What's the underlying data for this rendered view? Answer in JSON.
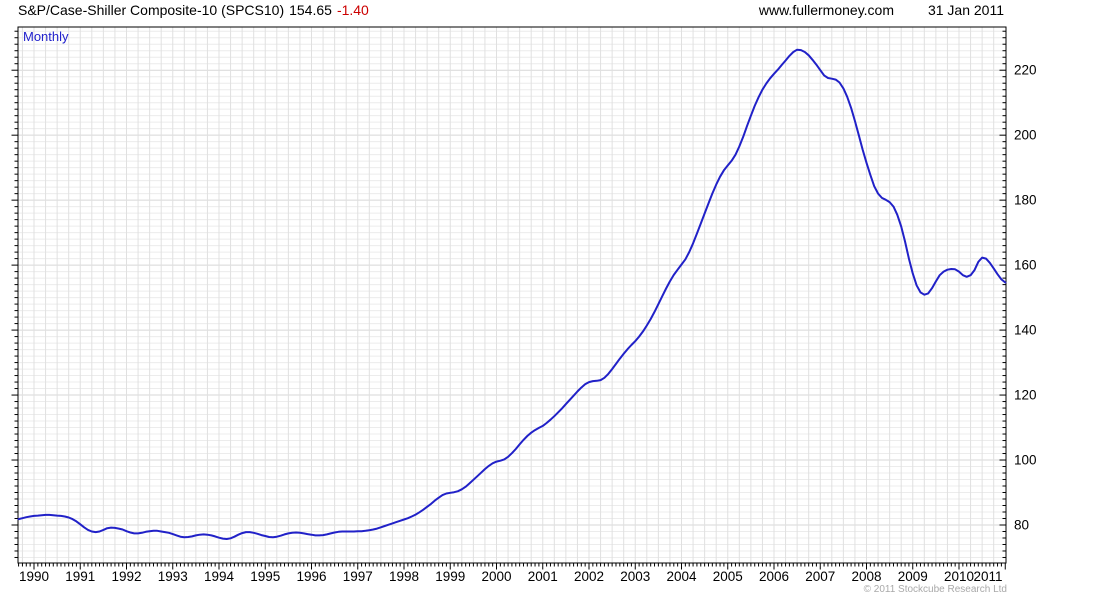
{
  "header": {
    "instrument": "S&P/Case-Shiller Composite-10 (SPCS10)",
    "last_value": "154.65",
    "change": "-1.40",
    "change_color": "#cc0000",
    "site": "www.fullermoney.com",
    "date": "31 Jan 2011"
  },
  "chart": {
    "frequency_label": "Monthly",
    "frequency_color": "#2222cc",
    "copyright": "© 2011 Stockcube Research Ltd"
  },
  "chart_data": {
    "type": "line",
    "title": "S&P/Case-Shiller Composite-10 (SPCS10)",
    "xlabel": "",
    "ylabel": "",
    "frequency": "monthly",
    "grid": true,
    "line_color": "#2121c8",
    "ylim": [
      68.3,
      233.3
    ],
    "y_major_ticks": [
      80,
      100,
      120,
      140,
      160,
      180,
      200,
      220
    ],
    "y_minor_step": 2,
    "x_year_labels": [
      "1990",
      "1991",
      "1992",
      "1993",
      "1994",
      "1995",
      "1996",
      "1997",
      "1998",
      "1999",
      "2000",
      "2001",
      "2002",
      "2003",
      "2004",
      "2005",
      "2006",
      "2007",
      "2008",
      "2009",
      "2010",
      "2011"
    ],
    "series": [
      {
        "name": "SPCS10",
        "start_year": 1989,
        "start_month": 9,
        "values": [
          81.8,
          82.1,
          82.4,
          82.6,
          82.8,
          82.9,
          83.0,
          83.1,
          83.1,
          83.0,
          82.9,
          82.8,
          82.6,
          82.3,
          81.8,
          81.1,
          80.2,
          79.3,
          78.5,
          78.0,
          77.8,
          78.0,
          78.5,
          79.0,
          79.2,
          79.1,
          78.9,
          78.6,
          78.1,
          77.7,
          77.4,
          77.4,
          77.6,
          77.9,
          78.1,
          78.2,
          78.2,
          78.0,
          77.8,
          77.6,
          77.2,
          76.8,
          76.4,
          76.2,
          76.3,
          76.5,
          76.8,
          77.0,
          77.1,
          77.0,
          76.8,
          76.5,
          76.1,
          75.8,
          75.7,
          75.9,
          76.4,
          77.0,
          77.5,
          77.8,
          77.8,
          77.6,
          77.3,
          76.9,
          76.6,
          76.3,
          76.2,
          76.4,
          76.7,
          77.1,
          77.4,
          77.6,
          77.7,
          77.6,
          77.4,
          77.2,
          77.0,
          76.8,
          76.8,
          76.9,
          77.1,
          77.4,
          77.7,
          77.9,
          78.0,
          78.0,
          78.0,
          78.0,
          78.1,
          78.1,
          78.2,
          78.4,
          78.6,
          78.9,
          79.3,
          79.7,
          80.1,
          80.5,
          80.9,
          81.3,
          81.7,
          82.1,
          82.6,
          83.2,
          83.9,
          84.7,
          85.6,
          86.5,
          87.5,
          88.4,
          89.2,
          89.7,
          89.9,
          90.1,
          90.4,
          91.0,
          91.8,
          92.8,
          93.9,
          95.0,
          96.1,
          97.2,
          98.2,
          99.0,
          99.5,
          99.8,
          100.2,
          101.0,
          102.1,
          103.4,
          104.8,
          106.2,
          107.4,
          108.4,
          109.2,
          109.9,
          110.5,
          111.4,
          112.4,
          113.5,
          114.7,
          115.9,
          117.2,
          118.5,
          119.8,
          121.1,
          122.3,
          123.3,
          124.0,
          124.3,
          124.4,
          124.6,
          125.3,
          126.5,
          128.0,
          129.6,
          131.2,
          132.7,
          134.1,
          135.4,
          136.6,
          138.0,
          139.6,
          141.4,
          143.4,
          145.6,
          148.0,
          150.4,
          152.8,
          155.0,
          157.0,
          158.6,
          160.2,
          161.8,
          164.0,
          166.7,
          169.7,
          172.8,
          175.9,
          179.0,
          182.0,
          184.8,
          187.2,
          189.2,
          190.7,
          192.1,
          194.0,
          196.5,
          199.5,
          202.8,
          206.0,
          209.0,
          211.7,
          214.0,
          215.9,
          217.5,
          218.9,
          220.2,
          221.6,
          223.0,
          224.4,
          225.6,
          226.3,
          226.2,
          225.6,
          224.6,
          223.2,
          221.7,
          220.0,
          218.4,
          217.6,
          217.4,
          217.1,
          216.2,
          214.4,
          211.8,
          208.4,
          204.4,
          200.0,
          195.6,
          191.5,
          187.7,
          184.3,
          182.0,
          180.7,
          180.1,
          179.4,
          178.0,
          175.5,
          171.9,
          167.3,
          162.0,
          157.4,
          153.8,
          151.6,
          150.9,
          151.3,
          152.9,
          155.0,
          156.9,
          158.0,
          158.6,
          158.8,
          158.7,
          158.0,
          156.9,
          156.4,
          156.9,
          158.4,
          161.0,
          162.3,
          162.0,
          160.7,
          159.0,
          157.2,
          155.6,
          154.65
        ]
      }
    ]
  }
}
